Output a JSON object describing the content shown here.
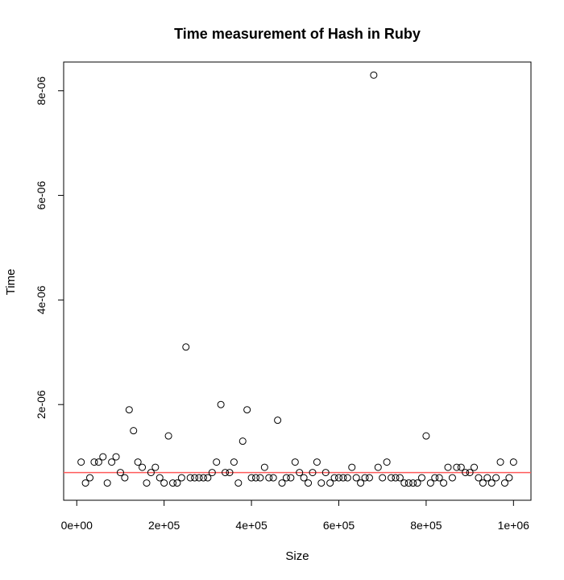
{
  "chart_data": {
    "type": "scatter",
    "title": "Time measurement of Hash in Ruby",
    "xlabel": "Size",
    "ylabel": "Time",
    "xlim": [
      -30000,
      1040000
    ],
    "ylim": [
      1.7e-07,
      8.55e-06
    ],
    "xticks": [
      {
        "value": 0,
        "label": "0e+00"
      },
      {
        "value": 200000,
        "label": "2e+05"
      },
      {
        "value": 400000,
        "label": "4e+05"
      },
      {
        "value": 600000,
        "label": "6e+05"
      },
      {
        "value": 800000,
        "label": "8e+05"
      },
      {
        "value": 1000000,
        "label": "1e+06"
      }
    ],
    "yticks": [
      {
        "value": 2e-06,
        "label": "2e-06"
      },
      {
        "value": 4e-06,
        "label": "4e-06"
      },
      {
        "value": 6e-06,
        "label": "6e-06"
      },
      {
        "value": 8e-06,
        "label": "8e-06"
      }
    ],
    "series": [
      {
        "x": [
          10000,
          20000,
          30000,
          40000,
          50000,
          60000,
          70000,
          80000,
          90000,
          100000,
          110000,
          120000,
          130000,
          140000,
          150000,
          160000,
          170000,
          180000,
          190000,
          200000,
          210000,
          220000,
          230000,
          240000,
          250000,
          260000,
          270000,
          280000,
          290000,
          300000,
          310000,
          320000,
          330000,
          340000,
          350000,
          360000,
          370000,
          380000,
          390000,
          400000,
          410000,
          420000,
          430000,
          440000,
          450000,
          460000,
          470000,
          480000,
          490000,
          500000,
          510000,
          520000,
          530000,
          540000,
          550000,
          560000,
          570000,
          580000,
          590000,
          600000,
          610000,
          620000,
          630000,
          640000,
          650000,
          660000,
          670000,
          680000,
          690000,
          700000,
          710000,
          720000,
          730000,
          740000,
          750000,
          760000,
          770000,
          780000,
          790000,
          800000,
          810000,
          820000,
          830000,
          840000,
          850000,
          860000,
          870000,
          880000,
          890000,
          900000,
          910000,
          920000,
          930000,
          940000,
          950000,
          960000,
          970000,
          980000,
          990000,
          1000000
        ],
        "y": [
          9e-07,
          5e-07,
          6e-07,
          9e-07,
          9e-07,
          1e-06,
          5e-07,
          9e-07,
          1e-06,
          7e-07,
          6e-07,
          1.9e-06,
          1.5e-06,
          9e-07,
          8e-07,
          5e-07,
          7e-07,
          8e-07,
          6e-07,
          5e-07,
          1.4e-06,
          5e-07,
          5e-07,
          6e-07,
          3.1e-06,
          6e-07,
          6e-07,
          6e-07,
          6e-07,
          6e-07,
          7e-07,
          9e-07,
          2e-06,
          7e-07,
          7e-07,
          9e-07,
          5e-07,
          1.3e-06,
          1.9e-06,
          6e-07,
          6e-07,
          6e-07,
          8e-07,
          6e-07,
          6e-07,
          1.7e-06,
          5e-07,
          6e-07,
          6e-07,
          9e-07,
          7e-07,
          6e-07,
          5e-07,
          7e-07,
          9e-07,
          5e-07,
          7e-07,
          5e-07,
          6e-07,
          6e-07,
          6e-07,
          6e-07,
          8e-07,
          6e-07,
          5e-07,
          6e-07,
          6e-07,
          8.3e-06,
          8e-07,
          6e-07,
          9e-07,
          6e-07,
          6e-07,
          6e-07,
          5e-07,
          5e-07,
          5e-07,
          5e-07,
          6e-07,
          1.4e-06,
          5e-07,
          6e-07,
          6e-07,
          5e-07,
          8e-07,
          6e-07,
          8e-07,
          8e-07,
          7e-07,
          7e-07,
          8e-07,
          6e-07,
          5e-07,
          6e-07,
          5e-07,
          6e-07,
          9e-07,
          5e-07,
          6e-07,
          9e-07
        ]
      }
    ],
    "hline": {
      "y": 7e-07,
      "color": "#ff5a5a"
    },
    "grid": false,
    "legend": "none"
  }
}
